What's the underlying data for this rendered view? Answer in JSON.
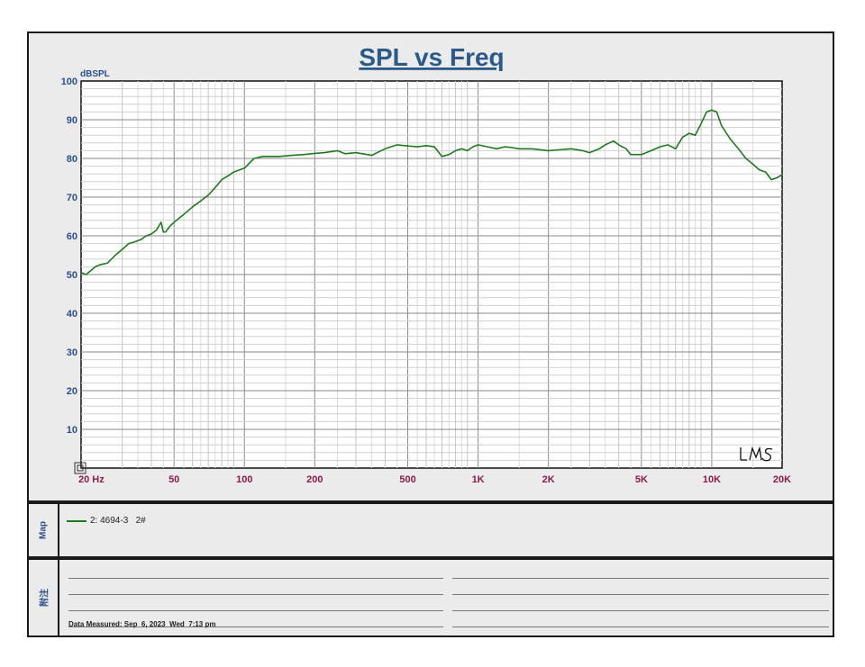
{
  "chart_data": {
    "type": "line",
    "title": "SPL vs Freq",
    "ylabel": "dBSPL",
    "xscale": "log",
    "xlim": [
      20,
      20000
    ],
    "ylim": [
      0,
      100
    ],
    "y_ticks": [
      100,
      90,
      80,
      70,
      60,
      50,
      40,
      30,
      20,
      10
    ],
    "x_ticks": [
      {
        "value": 20,
        "label": "20 Hz"
      },
      {
        "value": 50,
        "label": "50"
      },
      {
        "value": 100,
        "label": "100"
      },
      {
        "value": 200,
        "label": "200"
      },
      {
        "value": 500,
        "label": "500"
      },
      {
        "value": 1000,
        "label": "1K"
      },
      {
        "value": 2000,
        "label": "2K"
      },
      {
        "value": 5000,
        "label": "5K"
      },
      {
        "value": 10000,
        "label": "10K"
      },
      {
        "value": 20000,
        "label": "20K"
      }
    ],
    "grid": true,
    "series": [
      {
        "name": "2: 4694-3   2#",
        "color": "#1e7a1e",
        "x": [
          20,
          21,
          22,
          23,
          24,
          26,
          28,
          30,
          32,
          34,
          36,
          38,
          40,
          42,
          44,
          45,
          46,
          48,
          50,
          55,
          60,
          65,
          70,
          75,
          80,
          85,
          90,
          95,
          100,
          110,
          120,
          130,
          140,
          160,
          180,
          200,
          220,
          250,
          270,
          300,
          350,
          400,
          450,
          500,
          550,
          600,
          650,
          700,
          750,
          800,
          850,
          900,
          950,
          1000,
          1100,
          1200,
          1300,
          1400,
          1500,
          1700,
          2000,
          2200,
          2500,
          2800,
          3000,
          3300,
          3500,
          3800,
          4000,
          4300,
          4500,
          5000,
          5500,
          6000,
          6500,
          7000,
          7500,
          8000,
          8500,
          9000,
          9500,
          10000,
          10500,
          11000,
          12000,
          13000,
          14000,
          15000,
          16000,
          17000,
          18000,
          19000,
          20000
        ],
        "values": [
          50.5,
          50,
          51,
          52,
          52.5,
          53,
          55,
          56.5,
          58,
          58.5,
          59,
          60,
          60.5,
          61.5,
          63.5,
          61,
          61,
          62.5,
          63.5,
          65.5,
          67.5,
          69,
          70.5,
          72.5,
          74.5,
          75.5,
          76.5,
          77,
          77.5,
          80,
          80.5,
          80.5,
          80.5,
          80.8,
          81,
          81.3,
          81.5,
          82,
          81.2,
          81.5,
          80.8,
          82.5,
          83.5,
          83.2,
          83,
          83.3,
          83,
          80.5,
          81,
          82,
          82.5,
          82,
          83,
          83.5,
          83,
          82.5,
          83,
          82.8,
          82.5,
          82.5,
          82,
          82.2,
          82.5,
          82,
          81.5,
          82.5,
          83.5,
          84.5,
          83.5,
          82.5,
          81,
          81,
          82,
          83,
          83.5,
          82.5,
          85.5,
          86.5,
          86,
          89,
          92,
          92.5,
          92,
          88.5,
          85,
          82.5,
          80,
          78.5,
          77,
          76.5,
          74.5,
          75,
          75.8
        ]
      }
    ]
  },
  "annotations": {
    "watermark": "LMS"
  },
  "map": {
    "label": "Map",
    "entry": "2: 4694-3   2#"
  },
  "notes": {
    "label": "附注",
    "date_text": "Data Measured: Sep  6, 2023  Wed  7:13 pm"
  }
}
